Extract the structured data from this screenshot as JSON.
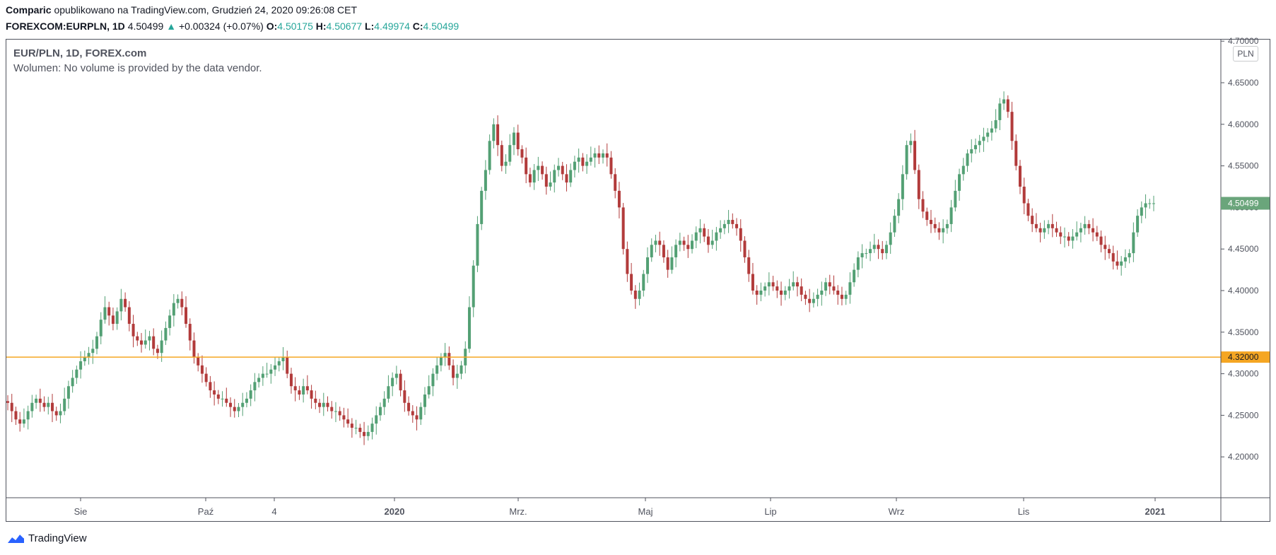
{
  "header": {
    "author": "Comparic",
    "published": " opublikowano na TradingView.com, Grudzień 24, 2020 09:26:08 CET",
    "symbol": "FOREXCOM:EURPLN, 1D",
    "last": "4.50499",
    "change": "+0.00324 (+0.07%)",
    "open_label": "O:",
    "open": "4.50175",
    "high_label": "H:",
    "high": "4.50677",
    "low_label": "L:",
    "low": "4.49974",
    "close_label": "C:",
    "close": "4.50499"
  },
  "legend": {
    "title": "EUR/PLN, 1D, FOREX.com",
    "volume": "Wolumen: No volume is provided by the data vendor."
  },
  "currency_button": "PLN",
  "brand": "TradingView",
  "colors": {
    "up": "#26a69a",
    "candle_up": "#53a074",
    "candle_down": "#b23b3b",
    "hline": "#f5a623",
    "last_price_bg": "#6aa57b"
  },
  "chart_data": {
    "type": "candlestick",
    "ylim": [
      4.15,
      4.7
    ],
    "yticks": [
      "4.70000",
      "4.65000",
      "4.60000",
      "4.55000",
      "4.50000",
      "4.45000",
      "4.40000",
      "4.35000",
      "4.30000",
      "4.25000",
      "4.20000"
    ],
    "xticks": [
      "Sie",
      "Paź",
      "4",
      "2020",
      "Mrz.",
      "Maj",
      "Lip",
      "Wrz",
      "Lis",
      "2021"
    ],
    "last_price_label": "4.50499",
    "horizontal_line": {
      "value": 4.32,
      "label": "4.32000"
    },
    "closes": [
      4.265,
      4.255,
      4.245,
      4.24,
      4.245,
      4.255,
      4.265,
      4.27,
      4.265,
      4.26,
      4.265,
      4.255,
      4.25,
      4.255,
      4.27,
      4.285,
      4.295,
      4.305,
      4.315,
      4.32,
      4.325,
      4.33,
      4.345,
      4.365,
      4.38,
      4.37,
      4.36,
      4.375,
      4.39,
      4.38,
      4.36,
      4.345,
      4.34,
      4.335,
      4.34,
      4.345,
      4.33,
      4.325,
      4.34,
      4.355,
      4.37,
      4.385,
      4.39,
      4.38,
      4.36,
      4.34,
      4.32,
      4.31,
      4.3,
      4.29,
      4.28,
      4.275,
      4.27,
      4.27,
      4.265,
      4.26,
      4.255,
      4.26,
      4.265,
      4.27,
      4.28,
      4.29,
      4.295,
      4.3,
      4.3,
      4.305,
      4.31,
      4.315,
      4.32,
      4.3,
      4.285,
      4.28,
      4.275,
      4.285,
      4.28,
      4.27,
      4.265,
      4.26,
      4.265,
      4.26,
      4.255,
      4.255,
      4.25,
      4.245,
      4.24,
      4.235,
      4.235,
      4.23,
      4.225,
      4.23,
      4.24,
      4.25,
      4.26,
      4.27,
      4.285,
      4.295,
      4.3,
      4.28,
      4.265,
      4.255,
      4.25,
      4.245,
      4.26,
      4.275,
      4.285,
      4.3,
      4.31,
      4.32,
      4.325,
      4.31,
      4.295,
      4.3,
      4.31,
      4.33,
      4.38,
      4.43,
      4.48,
      4.52,
      4.545,
      4.58,
      4.6,
      4.575,
      4.55,
      4.555,
      4.575,
      4.59,
      4.57,
      4.56,
      4.54,
      4.53,
      4.545,
      4.55,
      4.54,
      4.525,
      4.53,
      4.545,
      4.55,
      4.54,
      4.53,
      4.545,
      4.555,
      4.56,
      4.55,
      4.555,
      4.56,
      4.565,
      4.56,
      4.565,
      4.56,
      4.54,
      4.52,
      4.5,
      4.45,
      4.42,
      4.4,
      4.39,
      4.4,
      4.42,
      4.44,
      4.455,
      4.46,
      4.455,
      4.44,
      4.425,
      4.44,
      4.455,
      4.46,
      4.455,
      4.45,
      4.46,
      4.47,
      4.475,
      4.465,
      4.455,
      4.46,
      4.47,
      4.475,
      4.48,
      4.485,
      4.48,
      4.475,
      4.46,
      4.44,
      4.42,
      4.4,
      4.395,
      4.4,
      4.405,
      4.41,
      4.405,
      4.4,
      4.395,
      4.4,
      4.405,
      4.41,
      4.405,
      4.395,
      4.39,
      4.385,
      4.39,
      4.395,
      4.4,
      4.41,
      4.405,
      4.4,
      4.395,
      4.39,
      4.395,
      4.41,
      4.425,
      4.44,
      4.445,
      4.445,
      4.45,
      4.455,
      4.45,
      4.445,
      4.455,
      4.47,
      4.49,
      4.51,
      4.54,
      4.575,
      4.58,
      4.545,
      4.51,
      4.495,
      4.485,
      4.48,
      4.475,
      4.47,
      4.475,
      4.48,
      4.5,
      4.52,
      4.54,
      4.55,
      4.565,
      4.57,
      4.575,
      4.58,
      4.585,
      4.59,
      4.595,
      4.605,
      4.625,
      4.63,
      4.615,
      4.58,
      4.55,
      4.525,
      4.505,
      4.49,
      4.48,
      4.475,
      4.47,
      4.475,
      4.48,
      4.475,
      4.47,
      4.465,
      4.465,
      4.46,
      4.465,
      4.47,
      4.475,
      4.48,
      4.475,
      4.47,
      4.465,
      4.455,
      4.45,
      4.445,
      4.435,
      4.43,
      4.435,
      4.44,
      4.445,
      4.47,
      4.49,
      4.5,
      4.505,
      4.505,
      4.505
    ]
  }
}
